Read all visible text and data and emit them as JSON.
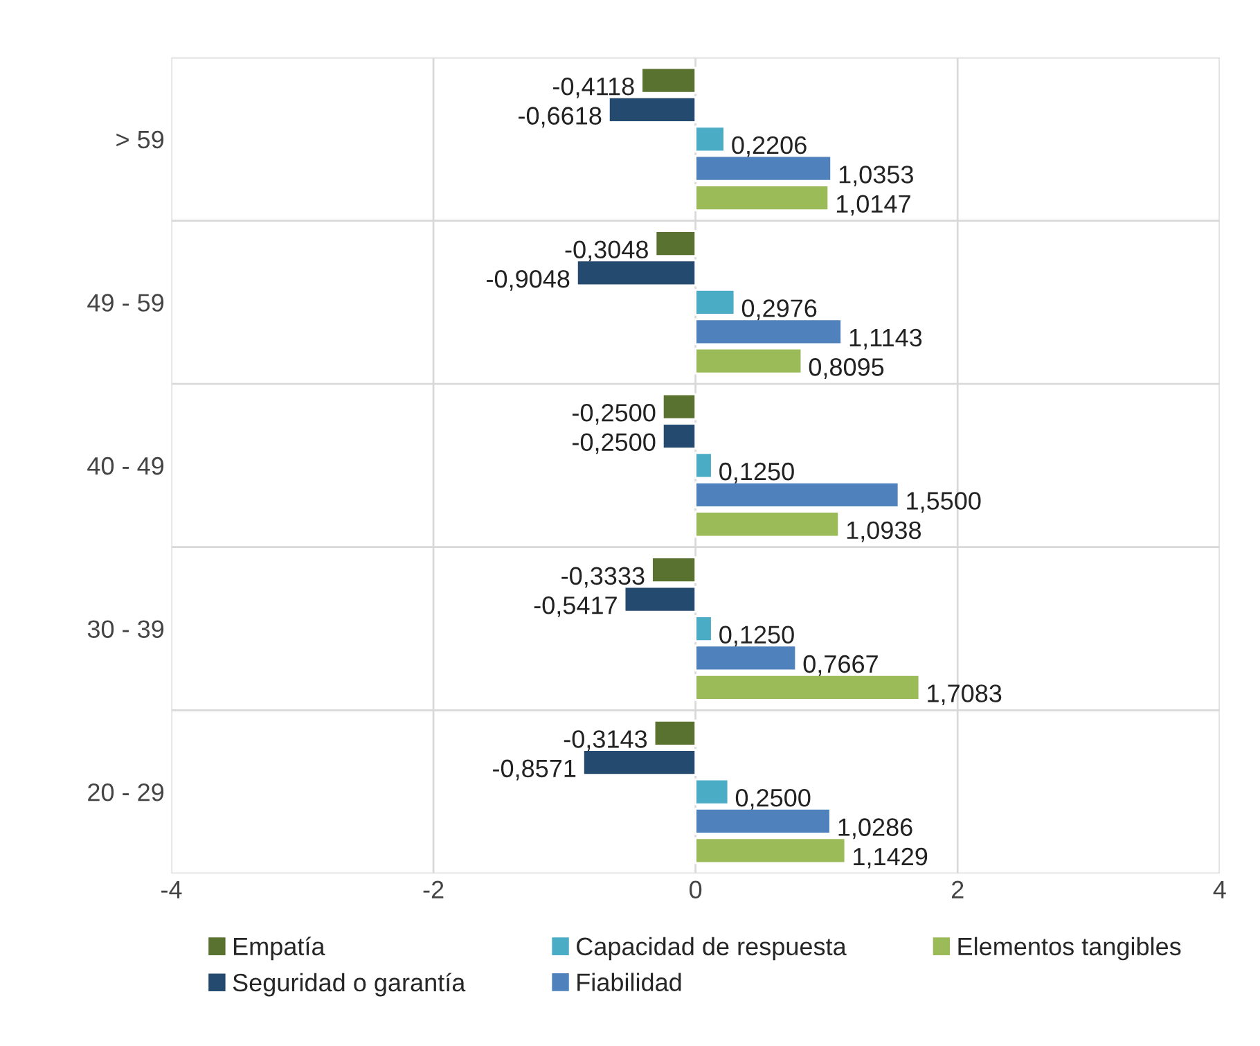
{
  "chart_data": {
    "type": "bar",
    "orientation": "horizontal",
    "categories": [
      "> 59",
      "49 - 59",
      "40 - 49",
      "30 - 39",
      "20 - 29"
    ],
    "series": [
      {
        "name": "Empatía",
        "color": "#5a7230",
        "values": [
          -0.4118,
          -0.3048,
          -0.25,
          -0.3333,
          -0.3143
        ],
        "value_labels": [
          "-0,4118",
          "-0,3048",
          "-0,2500",
          "-0,3333",
          "-0,3143"
        ]
      },
      {
        "name": "Seguridad o garantía",
        "color": "#254a6f",
        "values": [
          -0.6618,
          -0.9048,
          -0.25,
          -0.5417,
          -0.8571
        ],
        "value_labels": [
          "-0,6618",
          "-0,9048",
          "-0,2500",
          "-0,5417",
          "-0,8571"
        ]
      },
      {
        "name": "Capacidad de respuesta",
        "color": "#4bacc6",
        "values": [
          0.2206,
          0.2976,
          0.125,
          0.125,
          0.25
        ],
        "value_labels": [
          "0,2206",
          "0,2976",
          "0,1250",
          "0,1250",
          "0,2500"
        ]
      },
      {
        "name": "Fiabilidad",
        "color": "#4f81bd",
        "values": [
          1.0353,
          1.1143,
          1.55,
          0.7667,
          1.0286
        ],
        "value_labels": [
          "1,0353",
          "1,1143",
          "1,5500",
          "0,7667",
          "1,0286"
        ]
      },
      {
        "name": "Elementos tangibles",
        "color": "#9bbb59",
        "values": [
          1.0147,
          0.8095,
          1.0938,
          1.7083,
          1.1429
        ],
        "value_labels": [
          "1,0147",
          "0,8095",
          "1,0938",
          "1,7083",
          "1,1429"
        ]
      }
    ],
    "xlim": [
      -4,
      4
    ],
    "xticks": [
      {
        "value": -4,
        "label": "-4"
      },
      {
        "value": -2,
        "label": "-2"
      },
      0,
      2,
      4
    ],
    "grid": true,
    "legend": "bottom"
  }
}
